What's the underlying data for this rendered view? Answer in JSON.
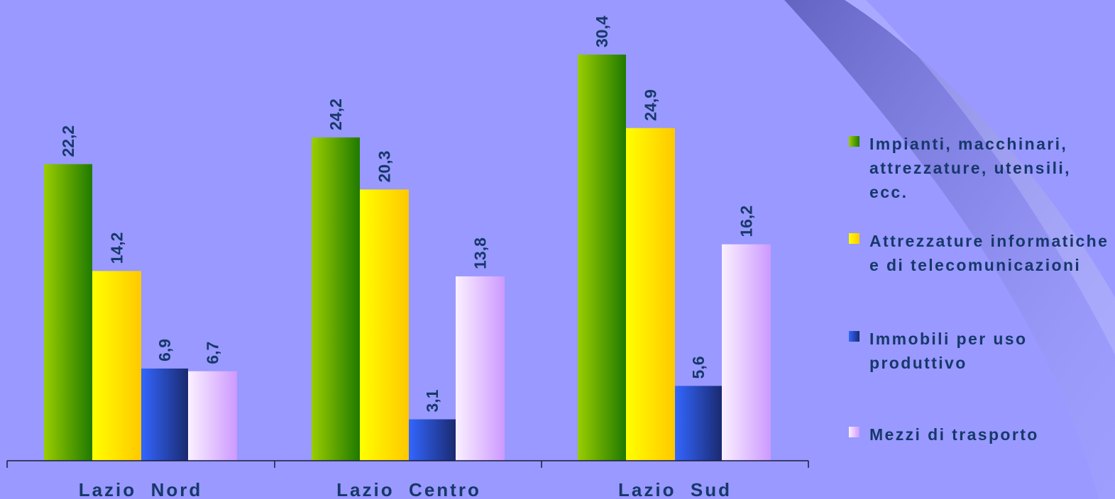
{
  "chart_data": {
    "type": "bar",
    "categories": [
      "Lazio  Nord",
      "Lazio  Centro",
      "Lazio  Sud"
    ],
    "series": [
      {
        "name": "Impianti, macchinari, attrezzature, utensili, ecc.",
        "values": [
          22.2,
          24.2,
          30.4
        ],
        "value_labels": [
          "22,2",
          "24,2",
          "30,4"
        ]
      },
      {
        "name": "Attrezzature informatiche e di telecomunicazioni",
        "values": [
          14.2,
          20.3,
          24.9
        ],
        "value_labels": [
          "14,2",
          "20,3",
          "24,9"
        ]
      },
      {
        "name": "Immobili per uso produttivo",
        "values": [
          6.9,
          3.1,
          5.6
        ],
        "value_labels": [
          "6,9",
          "3,1",
          "5,6"
        ]
      },
      {
        "name": "Mezzi di trasporto",
        "values": [
          6.7,
          13.8,
          16.2
        ],
        "value_labels": [
          "6,7",
          "13,8",
          "16,2"
        ]
      }
    ],
    "colors": [
      "#2e8b00",
      "#ffd400",
      "#2a4fd6",
      "#e6c8ff"
    ],
    "ylim": [
      0,
      30.4
    ],
    "grid": false,
    "legend_position": "right",
    "title": "",
    "xlabel": "",
    "ylabel": ""
  }
}
